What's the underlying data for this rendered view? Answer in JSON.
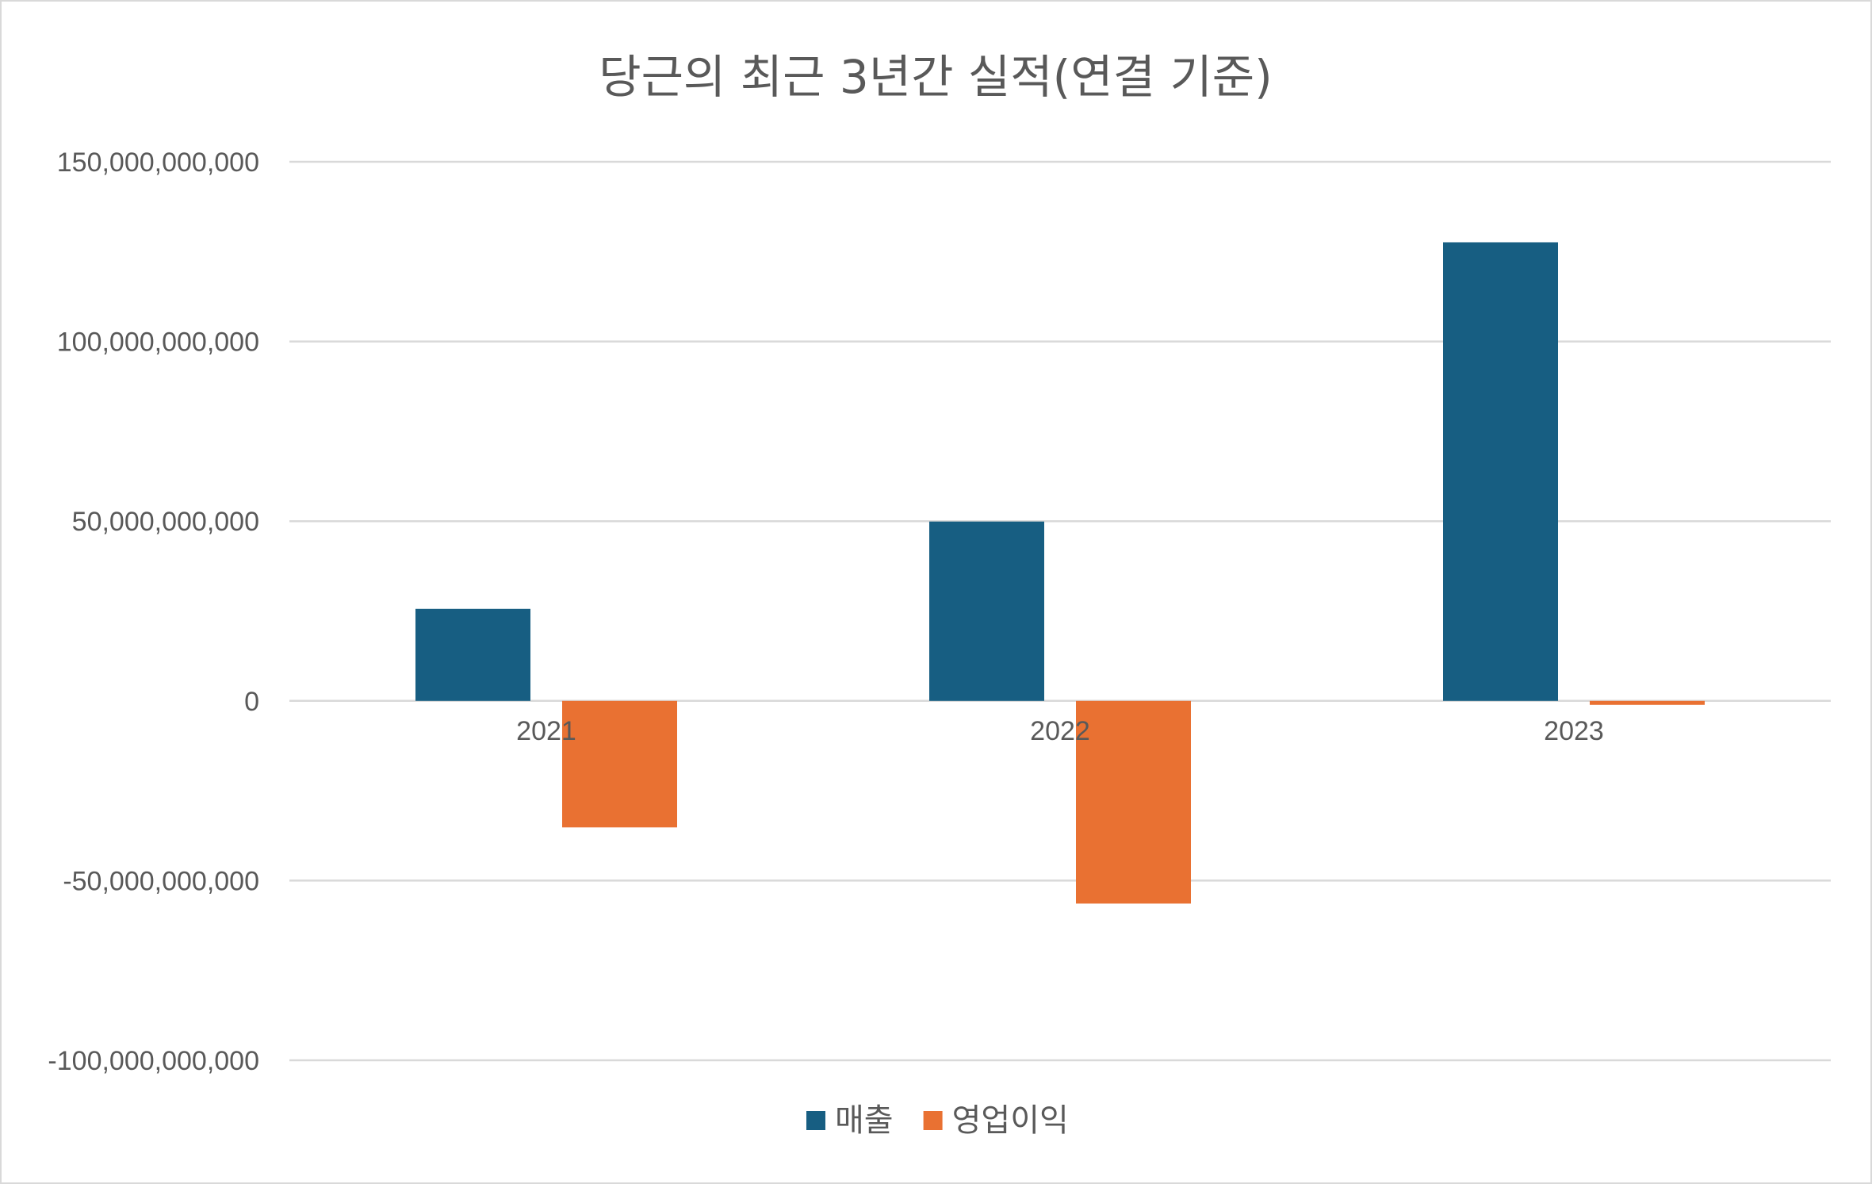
{
  "chart_data": {
    "type": "bar",
    "title": "당근의 최근 3년간 실적(연결 기준)",
    "xlabel": "",
    "ylabel": "",
    "categories": [
      "2021",
      "2022",
      "2023"
    ],
    "series": [
      {
        "name": "매출",
        "color": "#175E82",
        "values": [
          25600000000,
          49900000000,
          127600000000
        ]
      },
      {
        "name": "영업이익",
        "color": "#E97132",
        "values": [
          -35200000000,
          -56400000000,
          -1100000000
        ]
      }
    ],
    "ylim": [
      -100000000000,
      150000000000
    ],
    "yticks": [
      150000000000,
      100000000000,
      50000000000,
      0,
      -50000000000,
      -100000000000
    ],
    "ytick_labels": [
      "150,000,000,000",
      "100,000,000,000",
      "50,000,000,000",
      "0",
      "-50,000,000,000",
      "-100,000,000,000"
    ],
    "grid": true,
    "legend_position": "bottom"
  }
}
